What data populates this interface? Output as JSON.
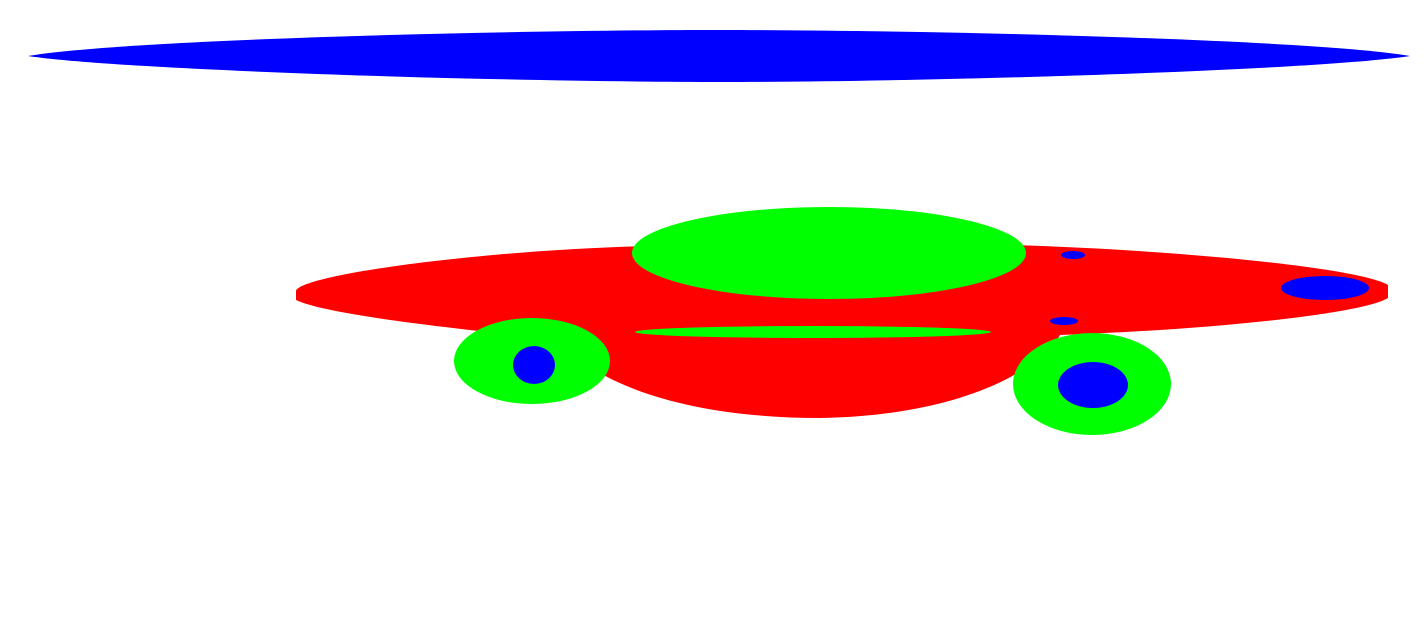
{
  "colors": {
    "background": "#ffffff",
    "red": "#ff0000",
    "green": "#00ff00",
    "blue": "#0000ff"
  }
}
